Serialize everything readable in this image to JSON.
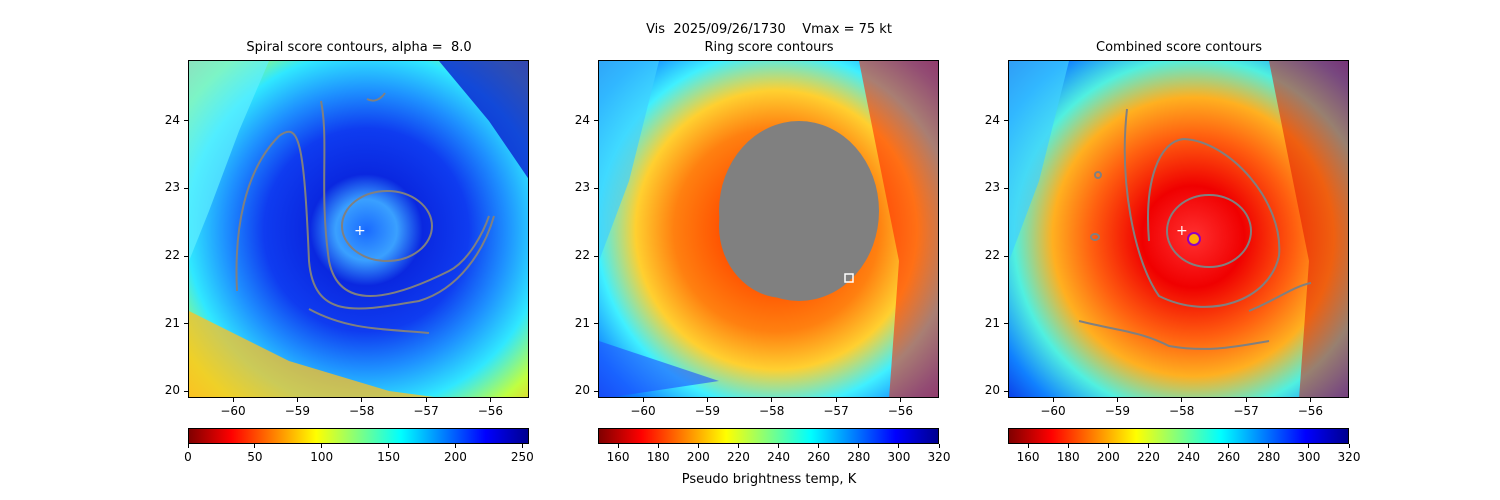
{
  "figure": {
    "suptitle": "Vis  2025/09/26/1730    Vmax = 75 kt",
    "colorbar_label": "Pseudo brightness temp, K"
  },
  "chart_data": [
    {
      "type": "heatmap",
      "title": "Spiral score contours, alpha =  8.0",
      "xlim": [
        -60.7,
        -55.4
      ],
      "ylim": [
        19.9,
        24.9
      ],
      "x_ticks": [
        -60,
        -59,
        -58,
        -57,
        -56
      ],
      "y_ticks": [
        20,
        21,
        22,
        23,
        24
      ],
      "x_tick_labels": [
        "−60",
        "−59",
        "−58",
        "−57",
        "−56"
      ],
      "y_tick_labels": [
        "20",
        "21",
        "22",
        "23",
        "24"
      ],
      "colorbar": {
        "range": [
          0,
          255
        ],
        "ticks": [
          0,
          50,
          100,
          150,
          200,
          250
        ],
        "tick_labels": [
          "0",
          "50",
          "100",
          "150",
          "200",
          "250"
        ],
        "colormap": "jet_r"
      },
      "center_marker": {
        "lon": -58.0,
        "lat": 22.38
      },
      "contour_color": "#808080"
    },
    {
      "type": "heatmap",
      "title": "Ring score contours",
      "xlim": [
        -60.7,
        -55.4
      ],
      "ylim": [
        19.9,
        24.9
      ],
      "x_ticks": [
        -60,
        -59,
        -58,
        -57,
        -56
      ],
      "y_ticks": [
        20,
        21,
        22,
        23,
        24
      ],
      "x_tick_labels": [
        "−60",
        "−59",
        "−58",
        "−57",
        "−56"
      ],
      "y_tick_labels": [
        "20",
        "21",
        "22",
        "23",
        "24"
      ],
      "colorbar": {
        "range": [
          150,
          320
        ],
        "ticks": [
          160,
          180,
          200,
          220,
          240,
          260,
          280,
          300,
          320
        ],
        "tick_labels": [
          "160",
          "180",
          "200",
          "220",
          "240",
          "260",
          "280",
          "300",
          "320"
        ],
        "colormap": "jet_r"
      },
      "ring_max_marker": {
        "lon": -56.7,
        "lat": 21.65
      },
      "contour_color": "#808080"
    },
    {
      "type": "heatmap",
      "title": "Combined score contours",
      "xlim": [
        -60.7,
        -55.4
      ],
      "ylim": [
        19.9,
        24.9
      ],
      "x_ticks": [
        -60,
        -59,
        -58,
        -57,
        -56
      ],
      "y_ticks": [
        20,
        21,
        22,
        23,
        24
      ],
      "x_tick_labels": [
        "−60",
        "−59",
        "−58",
        "−57",
        "−56"
      ],
      "y_tick_labels": [
        "20",
        "21",
        "22",
        "23",
        "24"
      ],
      "colorbar": {
        "range": [
          150,
          320
        ],
        "ticks": [
          160,
          180,
          200,
          220,
          240,
          260,
          280,
          300,
          320
        ],
        "tick_labels": [
          "160",
          "180",
          "200",
          "220",
          "240",
          "260",
          "280",
          "300",
          "320"
        ],
        "colormap": "jet_r"
      },
      "center_marker": {
        "lon": -58.0,
        "lat": 22.38
      },
      "combined_max_marker": {
        "lon": -57.75,
        "lat": 22.25
      },
      "contour_color": "#808080"
    }
  ]
}
